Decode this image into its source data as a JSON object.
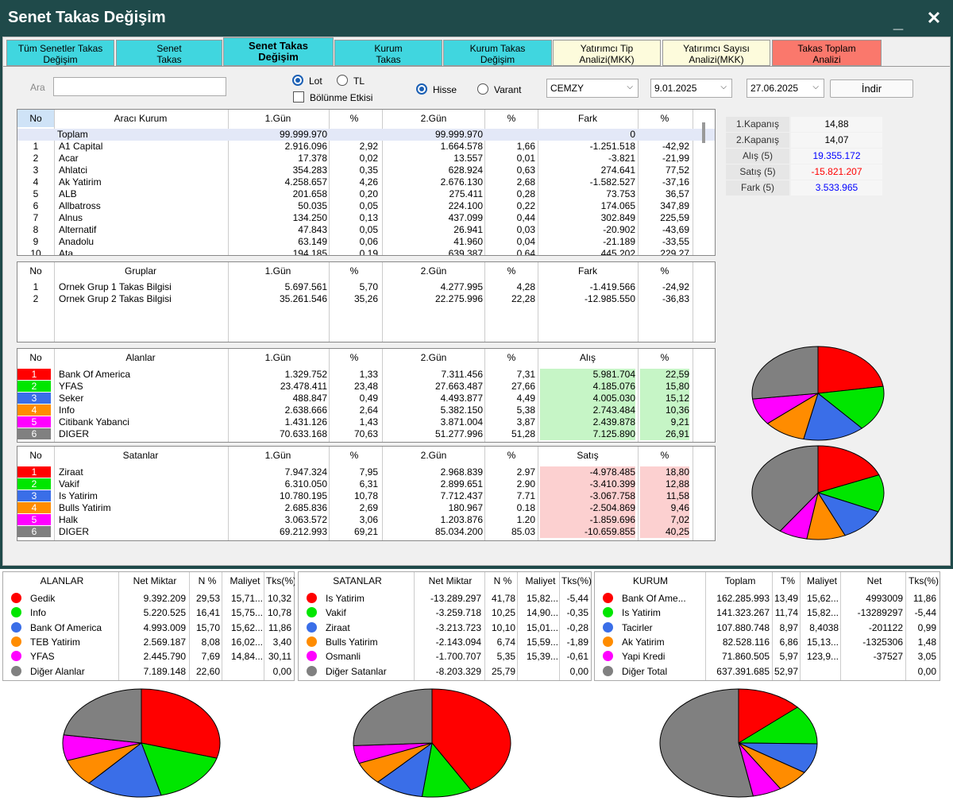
{
  "window": {
    "title": "Senet Takas Değişim",
    "minimize": "_",
    "close": "✕"
  },
  "tabs": [
    {
      "label": "Tüm Senetler Takas Değişim",
      "l1": "Tüm Senetler Takas",
      "l2": "Değişim",
      "style": "cy"
    },
    {
      "label": "Senet Takas",
      "l1": "Senet",
      "l2": "Takas",
      "style": "cy"
    },
    {
      "label": "Senet Takas Değişim",
      "l1": "Senet Takas",
      "l2": "Değişim",
      "style": "act"
    },
    {
      "label": "Kurum Takas",
      "l1": "Kurum",
      "l2": "Takas",
      "style": "cy"
    },
    {
      "label": "Kurum Takas Değişim",
      "l1": "Kurum Takas",
      "l2": "Değişim",
      "style": "cy"
    },
    {
      "label": "Yatırımcı Tip Analizi(MKK)",
      "l1": "Yatırımcı Tip",
      "l2": "Analizi(MKK)",
      "style": "yl"
    },
    {
      "label": "Yatırımcı Sayısı Analizi(MKK)",
      "l1": "Yatırımcı Sayısı",
      "l2": "Analizi(MKK)",
      "style": "yl"
    },
    {
      "label": "Takas Toplam Analizi",
      "l1": "Takas Toplam",
      "l2": "Analizi",
      "style": "rd"
    }
  ],
  "filters": {
    "search_label": "Ara",
    "search_value": "",
    "unit_lot": "Lot",
    "unit_tl": "TL",
    "unit_selected": "Lot",
    "split_effect": "Bölünme Etkisi",
    "split_checked": false,
    "type_stock": "Hisse",
    "type_warrant": "Varant",
    "type_selected": "Hisse",
    "symbol": "CEMZY",
    "date_start": "9.01.2025",
    "date_end": "27.06.2025",
    "download": "İndir"
  },
  "broker_table": {
    "headers": [
      "No",
      "Aracı Kurum",
      "1.Gün",
      "%",
      "2.Gün",
      "%",
      "Fark",
      "%"
    ],
    "total": {
      "no": "",
      "name": "Toplam",
      "d1": "99.999.970",
      "p1": "",
      "d2": "99.999.970",
      "p2": "",
      "diff": "0",
      "pd": ""
    },
    "rows": [
      {
        "no": "1",
        "name": "A1 Capital",
        "d1": "2.916.096",
        "p1": "2,92",
        "d2": "1.664.578",
        "p2": "1,66",
        "diff": "-1.251.518",
        "pd": "-42,92"
      },
      {
        "no": "2",
        "name": "Acar",
        "d1": "17.378",
        "p1": "0,02",
        "d2": "13.557",
        "p2": "0,01",
        "diff": "-3.821",
        "pd": "-21,99"
      },
      {
        "no": "3",
        "name": "Ahlatci",
        "d1": "354.283",
        "p1": "0,35",
        "d2": "628.924",
        "p2": "0,63",
        "diff": "274.641",
        "pd": "77,52"
      },
      {
        "no": "4",
        "name": "Ak Yatirim",
        "d1": "4.258.657",
        "p1": "4,26",
        "d2": "2.676.130",
        "p2": "2,68",
        "diff": "-1.582.527",
        "pd": "-37,16"
      },
      {
        "no": "5",
        "name": "ALB",
        "d1": "201.658",
        "p1": "0,20",
        "d2": "275.411",
        "p2": "0,28",
        "diff": "73.753",
        "pd": "36,57"
      },
      {
        "no": "6",
        "name": "Allbatross",
        "d1": "50.035",
        "p1": "0,05",
        "d2": "224.100",
        "p2": "0,22",
        "diff": "174.065",
        "pd": "347,89"
      },
      {
        "no": "7",
        "name": "Alnus",
        "d1": "134.250",
        "p1": "0,13",
        "d2": "437.099",
        "p2": "0,44",
        "diff": "302.849",
        "pd": "225,59"
      },
      {
        "no": "8",
        "name": "Alternatif",
        "d1": "47.843",
        "p1": "0,05",
        "d2": "26.941",
        "p2": "0,03",
        "diff": "-20.902",
        "pd": "-43,69"
      },
      {
        "no": "9",
        "name": "Anadolu",
        "d1": "63.149",
        "p1": "0,06",
        "d2": "41.960",
        "p2": "0,04",
        "diff": "-21.189",
        "pd": "-33,55"
      },
      {
        "no": "10",
        "name": "Ata",
        "d1": "194.185",
        "p1": "0,19",
        "d2": "639.387",
        "p2": "0,64",
        "diff": "445.202",
        "pd": "229,27"
      }
    ]
  },
  "groups_table": {
    "headers": [
      "No",
      "Gruplar",
      "1.Gün",
      "%",
      "2.Gün",
      "%",
      "Fark",
      "%"
    ],
    "rows": [
      {
        "no": "1",
        "name": "Ornek Grup 1 Takas Bilgisi",
        "d1": "5.697.561",
        "p1": "5,70",
        "d2": "4.277.995",
        "p2": "4,28",
        "diff": "-1.419.566",
        "pd": "-24,92"
      },
      {
        "no": "2",
        "name": "Ornek Grup 2 Takas Bilgisi",
        "d1": "35.261.546",
        "p1": "35,26",
        "d2": "22.275.996",
        "p2": "22,28",
        "diff": "-12.985.550",
        "pd": "-36,83"
      }
    ]
  },
  "buyers_table": {
    "headers": [
      "No",
      "Alanlar",
      "1.Gün",
      "%",
      "2.Gün",
      "%",
      "Alış",
      "%"
    ],
    "rows": [
      {
        "no": "1",
        "name": "Bank Of America",
        "d1": "1.329.752",
        "p1": "1,33",
        "d2": "7.311.456",
        "p2": "7,31",
        "diff": "5.981.704",
        "pd": "22,59",
        "color": "#ff0000"
      },
      {
        "no": "2",
        "name": "YFAS",
        "d1": "23.478.411",
        "p1": "23,48",
        "d2": "27.663.487",
        "p2": "27,66",
        "diff": "4.185.076",
        "pd": "15,80",
        "color": "#00e600"
      },
      {
        "no": "3",
        "name": "Seker",
        "d1": "488.847",
        "p1": "0,49",
        "d2": "4.493.877",
        "p2": "4,49",
        "diff": "4.005.030",
        "pd": "15,12",
        "color": "#3a6ee8"
      },
      {
        "no": "4",
        "name": "Info",
        "d1": "2.638.666",
        "p1": "2,64",
        "d2": "5.382.150",
        "p2": "5,38",
        "diff": "2.743.484",
        "pd": "10,36",
        "color": "#ff8c00"
      },
      {
        "no": "5",
        "name": "Citibank Yabanci",
        "d1": "1.431.126",
        "p1": "1,43",
        "d2": "3.871.004",
        "p2": "3,87",
        "diff": "2.439.878",
        "pd": "9,21",
        "color": "#ff00ff"
      },
      {
        "no": "6",
        "name": "DIGER",
        "d1": "70.633.168",
        "p1": "70,63",
        "d2": "51.277.996",
        "p2": "51,28",
        "diff": "7.125.890",
        "pd": "26,91",
        "color": "#808080"
      }
    ]
  },
  "sellers_table": {
    "headers": [
      "No",
      "Satanlar",
      "1.Gün",
      "%",
      "2.Gün",
      "%",
      "Satış",
      "%"
    ],
    "rows": [
      {
        "no": "1",
        "name": "Ziraat",
        "d1": "7.947.324",
        "p1": "7,95",
        "d2": "2.968.839",
        "p2": "2.97",
        "diff": "-4.978.485",
        "pd": "18,80",
        "color": "#ff0000"
      },
      {
        "no": "2",
        "name": "Vakif",
        "d1": "6.310.050",
        "p1": "6,31",
        "d2": "2.899.651",
        "p2": "2.90",
        "diff": "-3.410.399",
        "pd": "12,88",
        "color": "#00e600"
      },
      {
        "no": "3",
        "name": "Is Yatirim",
        "d1": "10.780.195",
        "p1": "10,78",
        "d2": "7.712.437",
        "p2": "7.71",
        "diff": "-3.067.758",
        "pd": "11,58",
        "color": "#3a6ee8"
      },
      {
        "no": "4",
        "name": "Bulls Yatirim",
        "d1": "2.685.836",
        "p1": "2,69",
        "d2": "180.967",
        "p2": "0.18",
        "diff": "-2.504.869",
        "pd": "9,46",
        "color": "#ff8c00"
      },
      {
        "no": "5",
        "name": "Halk",
        "d1": "3.063.572",
        "p1": "3,06",
        "d2": "1.203.876",
        "p2": "1.20",
        "diff": "-1.859.696",
        "pd": "7,02",
        "color": "#ff00ff"
      },
      {
        "no": "6",
        "name": "DIGER",
        "d1": "69.212.993",
        "p1": "69,21",
        "d2": "85.034.200",
        "p2": "85.03",
        "diff": "-10.659.855",
        "pd": "40,25",
        "color": "#808080"
      }
    ]
  },
  "summary": [
    {
      "label": "1.Kapanış",
      "value": "14,88",
      "color": "#000000"
    },
    {
      "label": "2.Kapanış",
      "value": "14,07",
      "color": "#000000"
    },
    {
      "label": "Alış (5)",
      "value": "19.355.172",
      "color": "#0000ff"
    },
    {
      "label": "Satış (5)",
      "value": "-15.821.207",
      "color": "#ff0000"
    },
    {
      "label": "Fark (5)",
      "value": "3.533.965",
      "color": "#0000ff"
    }
  ],
  "bottom_buyers": {
    "headers": [
      "ALANLAR",
      "Net Miktar",
      "N %",
      "Maliyet",
      "Tks(%)"
    ],
    "rows": [
      {
        "name": "Gedik",
        "net": "9.392.209",
        "np": "29,53",
        "cost": "15,71...",
        "tks": "10,32",
        "color": "#ff0000"
      },
      {
        "name": "Info",
        "net": "5.220.525",
        "np": "16,41",
        "cost": "15,75...",
        "tks": "10,78",
        "color": "#00e600"
      },
      {
        "name": "Bank Of America",
        "net": "4.993.009",
        "np": "15,70",
        "cost": "15,62...",
        "tks": "11,86",
        "color": "#3a6ee8"
      },
      {
        "name": "TEB Yatirim",
        "net": "2.569.187",
        "np": "8,08",
        "cost": "16,02...",
        "tks": "3,40",
        "color": "#ff8c00"
      },
      {
        "name": "YFAS",
        "net": "2.445.790",
        "np": "7,69",
        "cost": "14,84...",
        "tks": "30,11",
        "color": "#ff00ff"
      },
      {
        "name": "Diğer Alanlar",
        "net": "7.189.148",
        "np": "22,60",
        "cost": "",
        "tks": "0,00",
        "color": "#808080"
      }
    ]
  },
  "bottom_sellers": {
    "headers": [
      "SATANLAR",
      "Net Miktar",
      "N %",
      "Maliyet",
      "Tks(%)"
    ],
    "rows": [
      {
        "name": "Is Yatirim",
        "net": "-13.289.297",
        "np": "41,78",
        "cost": "15,82...",
        "tks": "-5,44",
        "color": "#ff0000"
      },
      {
        "name": "Vakif",
        "net": "-3.259.718",
        "np": "10,25",
        "cost": "14,90...",
        "tks": "-0,35",
        "color": "#00e600"
      },
      {
        "name": "Ziraat",
        "net": "-3.213.723",
        "np": "10,10",
        "cost": "15,01...",
        "tks": "-0,28",
        "color": "#3a6ee8"
      },
      {
        "name": "Bulls Yatirim",
        "net": "-2.143.094",
        "np": "6,74",
        "cost": "15,59...",
        "tks": "-1,89",
        "color": "#ff8c00"
      },
      {
        "name": "Osmanli",
        "net": "-1.700.707",
        "np": "5,35",
        "cost": "15,39...",
        "tks": "-0,61",
        "color": "#ff00ff"
      },
      {
        "name": "Diğer Satanlar",
        "net": "-8.203.329",
        "np": "25,79",
        "cost": "",
        "tks": "0,00",
        "color": "#808080"
      }
    ]
  },
  "bottom_institutions": {
    "headers": [
      "KURUM",
      "Toplam",
      "T%",
      "Maliyet",
      "Net",
      "Tks(%)"
    ],
    "rows": [
      {
        "name": "Bank Of Ame...",
        "total": "162.285.993",
        "tp": "13,49",
        "cost": "15,62...",
        "net": "4993009",
        "tks": "11,86",
        "color": "#ff0000"
      },
      {
        "name": "Is Yatirim",
        "total": "141.323.267",
        "tp": "11,74",
        "cost": "15,82...",
        "net": "-13289297",
        "tks": "-5,44",
        "color": "#00e600"
      },
      {
        "name": "Tacirler",
        "total": "107.880.748",
        "tp": "8,97",
        "cost": "8,4038",
        "net": "-201122",
        "tks": "0,99",
        "color": "#3a6ee8"
      },
      {
        "name": "Ak Yatirim",
        "total": "82.528.116",
        "tp": "6,86",
        "cost": "15,13...",
        "net": "-1325306",
        "tks": "1,48",
        "color": "#ff8c00"
      },
      {
        "name": "Yapi Kredi",
        "total": "71.860.505",
        "tp": "5,97",
        "cost": "123,9...",
        "net": "-37527",
        "tks": "3,05",
        "color": "#ff00ff"
      },
      {
        "name": "Diğer Total",
        "total": "637.391.685",
        "tp": "52,97",
        "cost": "",
        "net": "",
        "tks": "0,00",
        "color": "#808080"
      }
    ]
  },
  "chart_data": [
    {
      "type": "pie",
      "categories": [
        "Bank Of America",
        "YFAS",
        "Seker",
        "Info",
        "Citibank Yabanci",
        "DIGER"
      ],
      "values": [
        22.59,
        15.8,
        15.12,
        10.36,
        9.21,
        26.91
      ],
      "colors": [
        "#ff0000",
        "#00e600",
        "#3a6ee8",
        "#ff8c00",
        "#ff00ff",
        "#808080"
      ]
    },
    {
      "type": "pie",
      "categories": [
        "Ziraat",
        "Vakif",
        "Is Yatirim",
        "Bulls Yatirim",
        "Halk",
        "DIGER"
      ],
      "values": [
        18.8,
        12.88,
        11.58,
        9.46,
        7.02,
        40.25
      ],
      "colors": [
        "#ff0000",
        "#00e600",
        "#3a6ee8",
        "#ff8c00",
        "#ff00ff",
        "#808080"
      ]
    },
    {
      "type": "pie",
      "categories": [
        "Gedik",
        "Info",
        "Bank Of America",
        "TEB Yatirim",
        "YFAS",
        "Diğer Alanlar"
      ],
      "values": [
        29.53,
        16.41,
        15.7,
        8.08,
        7.69,
        22.6
      ],
      "colors": [
        "#ff0000",
        "#00e600",
        "#3a6ee8",
        "#ff8c00",
        "#ff00ff",
        "#808080"
      ]
    },
    {
      "type": "pie",
      "categories": [
        "Is Yatirim",
        "Vakif",
        "Ziraat",
        "Bulls Yatirim",
        "Osmanli",
        "Diğer Satanlar"
      ],
      "values": [
        41.78,
        10.25,
        10.1,
        6.74,
        5.35,
        25.79
      ],
      "colors": [
        "#ff0000",
        "#00e600",
        "#3a6ee8",
        "#ff8c00",
        "#ff00ff",
        "#808080"
      ]
    },
    {
      "type": "pie",
      "categories": [
        "Bank Of Ame...",
        "Is Yatirim",
        "Tacirler",
        "Ak Yatirim",
        "Yapi Kredi",
        "Diğer Total"
      ],
      "values": [
        13.49,
        11.74,
        8.97,
        6.86,
        5.97,
        52.97
      ],
      "colors": [
        "#ff0000",
        "#00e600",
        "#3a6ee8",
        "#ff8c00",
        "#ff00ff",
        "#808080"
      ]
    }
  ]
}
